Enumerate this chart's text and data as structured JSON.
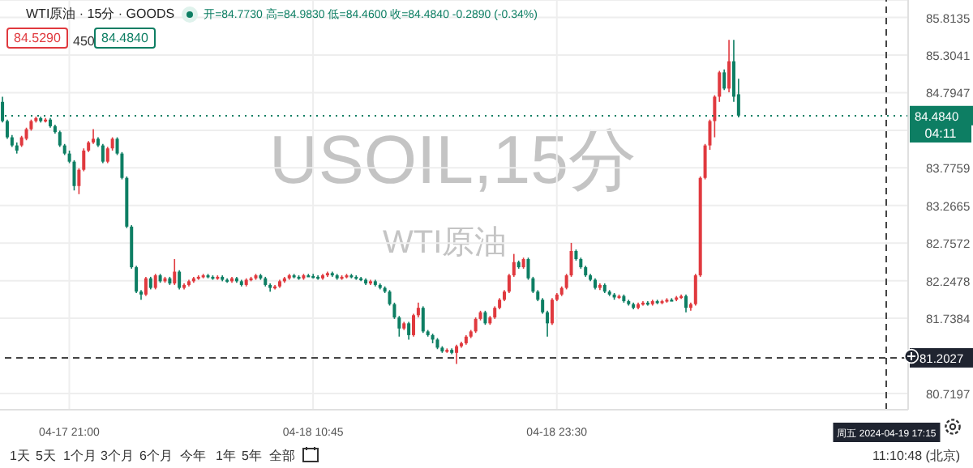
{
  "chart_data": {
    "type": "candlestick",
    "title": "WTI原油 · 15分 · GOODS",
    "subtitle": "开=84.7730 高=84.9830 低=84.4600 收=84.4840 -0.2890 (-0.34%)",
    "categories": [
      null,
      null,
      null,
      null,
      null,
      null,
      null,
      null,
      null,
      null,
      null,
      null,
      null,
      null,
      "04-17 21:00",
      null,
      null,
      null,
      null,
      null,
      null,
      null,
      null,
      null,
      null,
      null,
      null,
      null,
      null,
      null,
      null,
      null,
      null,
      null,
      null,
      null,
      null,
      null,
      null,
      null,
      null,
      null,
      null,
      null,
      null,
      null,
      null,
      null,
      null,
      null,
      null,
      null,
      null,
      null,
      null,
      null,
      null,
      null,
      null,
      null,
      null,
      null,
      null,
      null,
      null,
      "04-18 10:45",
      null,
      null,
      null,
      null,
      null,
      null,
      null,
      null,
      null,
      null,
      null,
      null,
      null,
      null,
      null,
      null,
      null,
      null,
      null,
      null,
      null,
      null,
      null,
      null,
      null,
      null,
      null,
      null,
      null,
      null,
      null,
      null,
      null,
      null,
      null,
      null,
      null,
      null,
      null,
      null,
      null,
      null,
      null,
      null,
      null,
      null,
      null,
      null,
      null,
      null,
      "04-18 23:30",
      null,
      null,
      null,
      null,
      null,
      null,
      null,
      null,
      null,
      null,
      null,
      null,
      null,
      null,
      null,
      null,
      null,
      null,
      null,
      null,
      null,
      null,
      null,
      null,
      null,
      null,
      null,
      null,
      null,
      null,
      null,
      null,
      null,
      null,
      null,
      null,
      null,
      null,
      null,
      null,
      null,
      null,
      null,
      null,
      null,
      null,
      null,
      null,
      null,
      null,
      null,
      null,
      null,
      null,
      null,
      null,
      null,
      null,
      null,
      null,
      null,
      null,
      null,
      null,
      null,
      null,
      null,
      null,
      "周五 2024-04-19 17:15",
      null,
      null,
      null,
      null
    ],
    "ohlc": [
      [
        84.67,
        84.74,
        84.39,
        84.41
      ],
      [
        84.41,
        84.43,
        84.17,
        84.19
      ],
      [
        84.19,
        84.22,
        84.06,
        84.08
      ],
      [
        84.08,
        84.12,
        83.97,
        84.01
      ],
      [
        84.08,
        84.21,
        84.06,
        84.19
      ],
      [
        84.17,
        84.32,
        84.15,
        84.3
      ],
      [
        84.3,
        84.43,
        84.28,
        84.41
      ],
      [
        84.41,
        84.47,
        84.39,
        84.45
      ],
      [
        84.45,
        84.47,
        84.39,
        84.41
      ],
      [
        84.41,
        84.45,
        84.39,
        84.43
      ],
      [
        84.43,
        84.45,
        84.32,
        84.34
      ],
      [
        84.34,
        84.36,
        84.24,
        84.26
      ],
      [
        84.26,
        84.28,
        84.06,
        84.08
      ],
      [
        84.08,
        84.1,
        83.95,
        83.97
      ],
      [
        83.97,
        84.01,
        83.84,
        83.86
      ],
      [
        83.86,
        83.88,
        83.47,
        83.53
      ],
      [
        83.53,
        83.77,
        83.42,
        83.75
      ],
      [
        83.75,
        84.04,
        83.73,
        84.01
      ],
      [
        84.01,
        84.14,
        83.99,
        84.12
      ],
      [
        84.12,
        84.3,
        84.1,
        84.17
      ],
      [
        84.17,
        84.19,
        84.06,
        84.08
      ],
      [
        84.08,
        84.1,
        83.84,
        83.86
      ],
      [
        83.86,
        84.06,
        83.84,
        84.04
      ],
      [
        84.04,
        84.19,
        84.01,
        84.17
      ],
      [
        84.17,
        84.19,
        83.95,
        83.97
      ],
      [
        83.97,
        83.99,
        83.62,
        83.64
      ],
      [
        83.64,
        83.66,
        82.96,
        82.98
      ],
      [
        82.98,
        83.0,
        82.41,
        82.43
      ],
      [
        82.43,
        82.45,
        82.08,
        82.1
      ],
      [
        82.1,
        82.12,
        81.99,
        82.06
      ],
      [
        82.06,
        82.3,
        82.04,
        82.28
      ],
      [
        82.28,
        82.3,
        82.13,
        82.15
      ],
      [
        82.15,
        82.34,
        82.13,
        82.32
      ],
      [
        82.32,
        82.34,
        82.22,
        82.24
      ],
      [
        82.24,
        82.3,
        82.22,
        82.28
      ],
      [
        82.28,
        82.3,
        82.19,
        82.21
      ],
      [
        82.21,
        82.54,
        82.19,
        82.37
      ],
      [
        82.37,
        82.39,
        82.13,
        82.15
      ],
      [
        82.15,
        82.21,
        82.13,
        82.19
      ],
      [
        82.19,
        82.26,
        82.17,
        82.24
      ],
      [
        82.24,
        82.3,
        82.22,
        82.28
      ],
      [
        82.28,
        82.32,
        82.26,
        82.3
      ],
      [
        82.3,
        82.34,
        82.28,
        82.32
      ],
      [
        82.32,
        82.34,
        82.28,
        82.3
      ],
      [
        82.3,
        82.32,
        82.26,
        82.28
      ],
      [
        82.28,
        82.32,
        82.26,
        82.3
      ],
      [
        82.3,
        82.32,
        82.24,
        82.26
      ],
      [
        82.26,
        82.28,
        82.22,
        82.24
      ],
      [
        82.24,
        82.3,
        82.22,
        82.28
      ],
      [
        82.28,
        82.3,
        82.22,
        82.24
      ],
      [
        82.24,
        82.26,
        82.17,
        82.19
      ],
      [
        82.19,
        82.28,
        82.17,
        82.26
      ],
      [
        82.26,
        82.3,
        82.24,
        82.28
      ],
      [
        82.28,
        82.34,
        82.26,
        82.32
      ],
      [
        82.32,
        82.34,
        82.26,
        82.28
      ],
      [
        82.28,
        82.3,
        82.17,
        82.19
      ],
      [
        82.19,
        82.21,
        82.1,
        82.15
      ],
      [
        82.15,
        82.19,
        82.13,
        82.17
      ],
      [
        82.17,
        82.26,
        82.15,
        82.24
      ],
      [
        82.24,
        82.3,
        82.22,
        82.28
      ],
      [
        82.28,
        82.34,
        82.26,
        82.32
      ],
      [
        82.32,
        82.34,
        82.28,
        82.3
      ],
      [
        82.3,
        82.32,
        82.26,
        82.28
      ],
      [
        82.28,
        82.34,
        82.26,
        82.32
      ],
      [
        82.32,
        82.34,
        82.3,
        82.31
      ],
      [
        82.31,
        82.34,
        82.28,
        82.3
      ],
      [
        82.3,
        82.32,
        82.26,
        82.28
      ],
      [
        82.28,
        82.34,
        82.26,
        82.32
      ],
      [
        82.32,
        82.37,
        82.3,
        82.35
      ],
      [
        82.35,
        82.37,
        82.3,
        82.32
      ],
      [
        82.32,
        82.34,
        82.26,
        82.28
      ],
      [
        82.28,
        82.32,
        82.26,
        82.3
      ],
      [
        82.3,
        82.34,
        82.28,
        82.32
      ],
      [
        82.32,
        82.34,
        82.28,
        82.3
      ],
      [
        82.3,
        82.32,
        82.26,
        82.28
      ],
      [
        82.28,
        82.3,
        82.24,
        82.26
      ],
      [
        82.26,
        82.28,
        82.19,
        82.21
      ],
      [
        82.21,
        82.26,
        82.19,
        82.24
      ],
      [
        82.24,
        82.26,
        82.17,
        82.19
      ],
      [
        82.19,
        82.21,
        82.13,
        82.15
      ],
      [
        82.15,
        82.17,
        82.08,
        82.1
      ],
      [
        82.1,
        82.12,
        81.91,
        81.93
      ],
      [
        81.93,
        81.95,
        81.73,
        81.75
      ],
      [
        81.75,
        81.77,
        81.49,
        81.6
      ],
      [
        81.6,
        81.69,
        81.58,
        81.67
      ],
      [
        81.67,
        81.69,
        81.45,
        81.51
      ],
      [
        81.51,
        81.8,
        81.49,
        81.78
      ],
      [
        81.78,
        81.95,
        81.75,
        81.88
      ],
      [
        81.88,
        81.9,
        81.54,
        81.56
      ],
      [
        81.56,
        81.58,
        81.49,
        81.51
      ],
      [
        81.51,
        81.53,
        81.4,
        81.45
      ],
      [
        81.45,
        81.47,
        81.32,
        81.34
      ],
      [
        81.34,
        81.36,
        81.27,
        81.29
      ],
      [
        81.29,
        81.33,
        81.27,
        81.31
      ],
      [
        81.31,
        81.33,
        81.25,
        81.27
      ],
      [
        81.27,
        81.38,
        81.12,
        81.36
      ],
      [
        81.36,
        81.42,
        81.34,
        81.4
      ],
      [
        81.4,
        81.51,
        81.38,
        81.49
      ],
      [
        81.49,
        81.58,
        81.47,
        81.56
      ],
      [
        81.56,
        81.75,
        81.54,
        81.73
      ],
      [
        81.73,
        81.84,
        81.71,
        81.82
      ],
      [
        81.82,
        81.84,
        81.65,
        81.67
      ],
      [
        81.67,
        81.77,
        81.65,
        81.75
      ],
      [
        81.75,
        81.9,
        81.73,
        81.88
      ],
      [
        81.88,
        82.01,
        81.86,
        81.99
      ],
      [
        81.99,
        82.12,
        81.97,
        82.1
      ],
      [
        82.1,
        82.34,
        82.08,
        82.32
      ],
      [
        82.32,
        82.61,
        82.3,
        82.5
      ],
      [
        82.5,
        82.52,
        82.41,
        82.43
      ],
      [
        82.43,
        82.56,
        82.41,
        82.54
      ],
      [
        82.54,
        82.56,
        82.26,
        82.28
      ],
      [
        82.28,
        82.3,
        82.08,
        82.1
      ],
      [
        82.1,
        82.12,
        81.97,
        81.99
      ],
      [
        81.99,
        82.01,
        81.8,
        81.82
      ],
      [
        81.82,
        81.84,
        81.49,
        81.67
      ],
      [
        81.67,
        82.01,
        81.65,
        81.99
      ],
      [
        81.99,
        82.08,
        81.97,
        82.06
      ],
      [
        82.06,
        82.17,
        82.04,
        82.15
      ],
      [
        82.15,
        82.34,
        82.13,
        82.32
      ],
      [
        82.32,
        82.76,
        82.3,
        82.65
      ],
      [
        82.65,
        82.67,
        82.52,
        82.54
      ],
      [
        82.54,
        82.56,
        82.41,
        82.43
      ],
      [
        82.43,
        82.45,
        82.3,
        82.32
      ],
      [
        82.32,
        82.34,
        82.24,
        82.26
      ],
      [
        82.26,
        82.28,
        82.13,
        82.15
      ],
      [
        82.15,
        82.21,
        82.12,
        82.19
      ],
      [
        82.19,
        82.21,
        82.08,
        82.1
      ],
      [
        82.1,
        82.12,
        82.04,
        82.06
      ],
      [
        82.06,
        82.08,
        81.99,
        82.02
      ],
      [
        82.02,
        82.06,
        82.0,
        82.04
      ],
      [
        82.04,
        82.06,
        81.95,
        81.97
      ],
      [
        81.97,
        81.99,
        81.91,
        81.93
      ],
      [
        81.93,
        81.95,
        81.86,
        81.88
      ],
      [
        81.88,
        81.95,
        81.86,
        81.93
      ],
      [
        81.93,
        81.97,
        81.91,
        81.95
      ],
      [
        81.95,
        81.97,
        81.91,
        81.93
      ],
      [
        81.93,
        81.99,
        81.91,
        81.97
      ],
      [
        81.97,
        81.99,
        81.93,
        81.95
      ],
      [
        81.95,
        81.99,
        81.93,
        81.97
      ],
      [
        81.97,
        82.01,
        81.95,
        81.99
      ],
      [
        81.99,
        82.01,
        81.97,
        81.99
      ],
      [
        81.99,
        82.04,
        81.97,
        82.02
      ],
      [
        82.02,
        82.06,
        82.0,
        82.04
      ],
      [
        82.04,
        82.06,
        81.82,
        81.88
      ],
      [
        81.88,
        81.95,
        81.84,
        81.93
      ],
      [
        81.93,
        82.34,
        81.91,
        82.32
      ],
      [
        82.32,
        83.66,
        82.3,
        83.64
      ],
      [
        83.64,
        84.1,
        83.62,
        84.08
      ],
      [
        84.08,
        84.43,
        84.02,
        84.41
      ],
      [
        84.41,
        84.76,
        84.19,
        84.74
      ],
      [
        84.74,
        85.09,
        84.67,
        85.07
      ],
      [
        85.07,
        85.11,
        84.83,
        84.85
      ],
      [
        84.85,
        85.51,
        84.8,
        85.22
      ],
      [
        85.22,
        85.51,
        84.67,
        84.74
      ],
      [
        84.773,
        84.983,
        84.46,
        84.484
      ],
      null,
      null,
      null,
      null,
      null,
      null,
      null,
      null,
      null,
      null,
      null,
      null,
      null,
      null,
      null,
      null,
      null,
      null,
      null,
      null,
      null,
      null,
      null,
      null,
      null,
      null,
      null,
      null,
      null,
      null,
      null,
      null,
      null,
      null,
      null
    ],
    "colors": [
      "#0d7e63",
      "#0d7e63",
      "#0d7e63",
      "#0d7e63",
      "#e0393e",
      "#e0393e",
      "#e0393e",
      "#e0393e",
      "#0d7e63",
      "#e0393e",
      "#0d7e63",
      "#0d7e63",
      "#0d7e63",
      "#0d7e63",
      "#0d7e63",
      "#0d7e63",
      "#e0393e",
      "#e0393e",
      "#e0393e",
      "#e0393e",
      "#0d7e63",
      "#0d7e63",
      "#e0393e",
      "#e0393e",
      "#0d7e63",
      "#0d7e63",
      "#0d7e63",
      "#0d7e63",
      "#0d7e63",
      "#0d7e63",
      "#e0393e",
      "#0d7e63",
      "#e0393e",
      "#0d7e63",
      "#e0393e",
      "#0d7e63",
      "#e0393e",
      "#0d7e63",
      "#e0393e",
      "#e0393e",
      "#e0393e",
      "#e0393e",
      "#e0393e",
      "#0d7e63",
      "#0d7e63",
      "#e0393e",
      "#0d7e63",
      "#0d7e63",
      "#e0393e",
      "#0d7e63",
      "#0d7e63",
      "#e0393e",
      "#e0393e",
      "#e0393e",
      "#0d7e63",
      "#0d7e63",
      "#0d7e63",
      "#e0393e",
      "#e0393e",
      "#e0393e",
      "#e0393e",
      "#0d7e63",
      "#0d7e63",
      "#e0393e",
      "#0d7e63",
      "#0d7e63",
      "#0d7e63",
      "#e0393e",
      "#e0393e",
      "#0d7e63",
      "#0d7e63",
      "#e0393e",
      "#e0393e",
      "#0d7e63",
      "#0d7e63",
      "#0d7e63",
      "#0d7e63",
      "#e0393e",
      "#0d7e63",
      "#0d7e63",
      "#0d7e63",
      "#0d7e63",
      "#0d7e63",
      "#0d7e63",
      "#e0393e",
      "#0d7e63",
      "#e0393e",
      "#e0393e",
      "#0d7e63",
      "#0d7e63",
      "#0d7e63",
      "#0d7e63",
      "#0d7e63",
      "#e0393e",
      "#0d7e63",
      "#e0393e",
      "#e0393e",
      "#e0393e",
      "#e0393e",
      "#e0393e",
      "#e0393e",
      "#0d7e63",
      "#e0393e",
      "#e0393e",
      "#e0393e",
      "#e0393e",
      "#e0393e",
      "#e0393e",
      "#0d7e63",
      "#e0393e",
      "#0d7e63",
      "#0d7e63",
      "#0d7e63",
      "#0d7e63",
      "#0d7e63",
      "#e0393e",
      "#e0393e",
      "#e0393e",
      "#e0393e",
      "#e0393e",
      "#0d7e63",
      "#0d7e63",
      "#0d7e63",
      "#0d7e63",
      "#0d7e63",
      "#e0393e",
      "#0d7e63",
      "#0d7e63",
      "#0d7e63",
      "#e0393e",
      "#0d7e63",
      "#0d7e63",
      "#0d7e63",
      "#e0393e",
      "#e0393e",
      "#0d7e63",
      "#e0393e",
      "#0d7e63",
      "#e0393e",
      "#e0393e",
      "#0d7e63",
      "#e0393e",
      "#e0393e",
      "#0d7e63",
      "#e0393e",
      "#e0393e",
      "#e0393e",
      "#e0393e",
      "#e0393e",
      "#e0393e",
      "#e0393e",
      "#0d7e63",
      "#e0393e",
      "#0d7e63",
      "#0d7e63",
      null,
      null,
      null,
      null,
      null,
      null,
      null,
      null,
      null,
      null,
      null,
      null,
      null,
      null,
      null,
      null,
      null,
      null,
      null,
      null,
      null,
      null,
      null,
      null,
      null,
      null,
      null,
      null,
      null,
      null,
      null,
      null,
      null,
      null,
      null
    ],
    "ylim": [
      80.5,
      86.05
    ],
    "yticks": [
      85.8135,
      85.3041,
      84.7947,
      {
        "value": 84.2853,
        "label": null
      },
      83.7759,
      83.2665,
      82.7572,
      82.2478,
      81.7384,
      80.7197
    ],
    "grid": true,
    "ref_lines": [
      {
        "axis": "y",
        "value": 84.484,
        "label": "84.4840",
        "color": "#0d7e63",
        "line_style": "dotted"
      },
      {
        "axis": "y",
        "value": 81.2027,
        "label": "81.2027",
        "color": "#444444",
        "line_style": "dashed"
      },
      {
        "axis": "x",
        "value": "周五 2024-04-19 17:15",
        "color": "#444444",
        "line_style": "dashed"
      }
    ],
    "annotations": [
      "84.5290",
      "450",
      "84.4840",
      "USOIL,15分",
      "WTI原油",
      "04:11",
      "1天",
      "5天",
      "1个月",
      "3个月",
      "6个月",
      "今年",
      "1年",
      "5年",
      "全部",
      "11:10:48 (北京)"
    ]
  }
}
